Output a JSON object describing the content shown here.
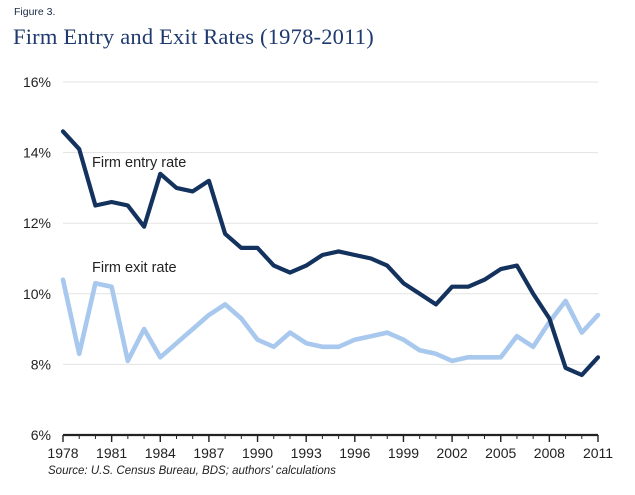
{
  "figure_label": "Figure 3.",
  "source_note": "Source: U.S. Census Bureau, BDS; authors' calculations",
  "colors": {
    "entry": "#13325e",
    "exit": "#a8c8ee",
    "grid": "#e3e3e3",
    "axis": "#222222",
    "title": "#1f3a6e"
  },
  "chart_data": {
    "type": "line",
    "title": "Firm Entry and Exit Rates (1978-2011)",
    "xlabel": "",
    "ylabel": "",
    "xlim": [
      1978,
      2011
    ],
    "ylim": [
      6,
      16
    ],
    "grid": "horizontal",
    "x_ticks": [
      1978,
      1981,
      1984,
      1987,
      1990,
      1993,
      1996,
      1999,
      2002,
      2005,
      2008,
      2011
    ],
    "x_tick_labels": [
      "1978",
      "1981",
      "1984",
      "1987",
      "1990",
      "1993",
      "1996",
      "1999",
      "2002",
      "2005",
      "2008",
      "2011"
    ],
    "y_ticks": [
      6,
      8,
      10,
      12,
      14,
      16
    ],
    "y_tick_labels": [
      "6%",
      "8%",
      "10%",
      "12%",
      "14%",
      "16%"
    ],
    "x": [
      1978,
      1979,
      1980,
      1981,
      1982,
      1983,
      1984,
      1985,
      1986,
      1987,
      1988,
      1989,
      1990,
      1991,
      1992,
      1993,
      1994,
      1995,
      1996,
      1997,
      1998,
      1999,
      2000,
      2001,
      2002,
      2003,
      2004,
      2005,
      2006,
      2007,
      2008,
      2009,
      2010,
      2011
    ],
    "series": [
      {
        "name": "Firm entry rate",
        "color": "#13325e",
        "values": [
          14.6,
          14.1,
          12.5,
          12.6,
          12.5,
          11.9,
          13.4,
          13.0,
          12.9,
          13.2,
          11.7,
          11.3,
          11.3,
          10.8,
          10.6,
          10.8,
          11.1,
          11.2,
          11.1,
          11.0,
          10.8,
          10.3,
          10.0,
          9.7,
          10.2,
          10.2,
          10.4,
          10.7,
          10.8,
          10.0,
          9.3,
          7.9,
          7.7,
          8.2
        ]
      },
      {
        "name": "Firm exit rate",
        "color": "#a8c8ee",
        "values": [
          10.4,
          8.3,
          10.3,
          10.2,
          8.1,
          9.0,
          8.2,
          8.6,
          9.0,
          9.4,
          9.7,
          9.3,
          8.7,
          8.5,
          8.9,
          8.6,
          8.5,
          8.5,
          8.7,
          8.8,
          8.9,
          8.7,
          8.4,
          8.3,
          8.1,
          8.2,
          8.2,
          8.2,
          8.8,
          8.5,
          9.2,
          9.8,
          8.9,
          9.4
        ]
      }
    ],
    "annotations": [
      {
        "text": "Firm entry rate",
        "series": 0
      },
      {
        "text": "Firm exit rate",
        "series": 1
      }
    ]
  }
}
